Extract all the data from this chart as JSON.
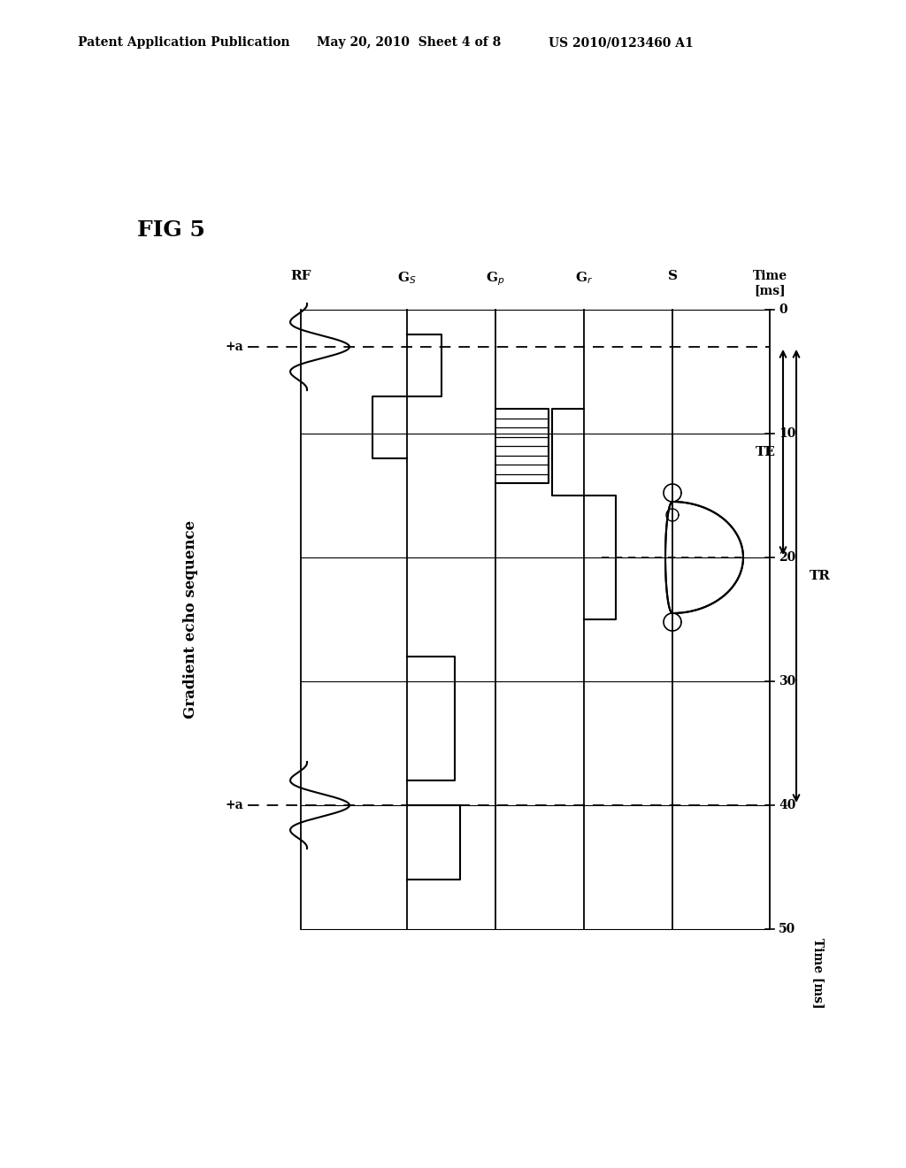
{
  "title": "Gradient echo sequence",
  "fig_label": "FIG 5",
  "header_left": "Patent Application Publication",
  "header_center": "May 20, 2010  Sheet 4 of 8",
  "header_right": "US 2010/0123460 A1",
  "background_color": "#ffffff",
  "line_color": "#000000"
}
